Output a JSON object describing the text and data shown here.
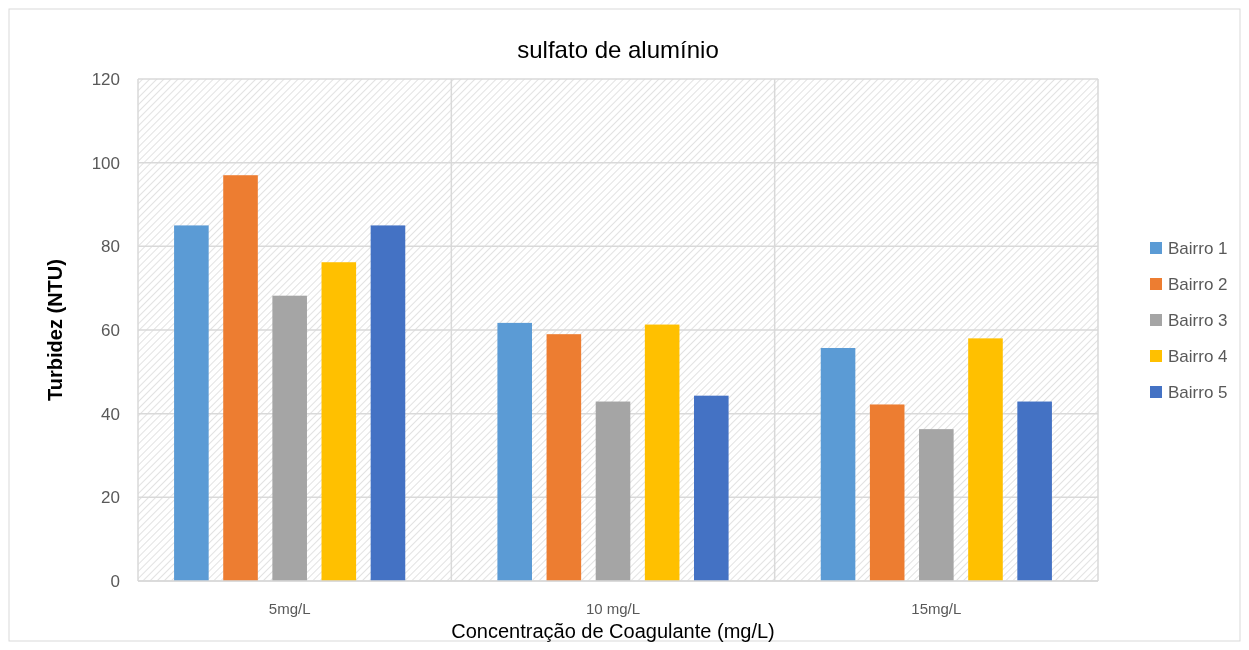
{
  "chart_data": {
    "type": "bar",
    "title": "sulfato de alumínio",
    "xlabel": "Concentração de Coagulante (mg/L)",
    "ylabel": "Turbidez (NTU)",
    "categories": [
      "5mg/L",
      "10 mg/L",
      "15mg/L"
    ],
    "series": [
      {
        "name": "Bairro 1",
        "color": "#5b9bd5",
        "values": [
          85,
          61.7,
          55.7
        ]
      },
      {
        "name": "Bairro 2",
        "color": "#ed7d31",
        "values": [
          97,
          59,
          42.2
        ]
      },
      {
        "name": "Bairro 3",
        "color": "#a5a5a5",
        "values": [
          68.2,
          42.9,
          36.3
        ]
      },
      {
        "name": "Bairro 4",
        "color": "#ffc000",
        "values": [
          76.2,
          61.3,
          58
        ]
      },
      {
        "name": "Bairro 5",
        "color": "#4472c4",
        "values": [
          85,
          44.3,
          42.9
        ]
      }
    ],
    "ylim": [
      0,
      120
    ],
    "yticks": [
      0,
      20,
      40,
      60,
      80,
      100,
      120
    ],
    "grid": true,
    "legend": "right"
  }
}
